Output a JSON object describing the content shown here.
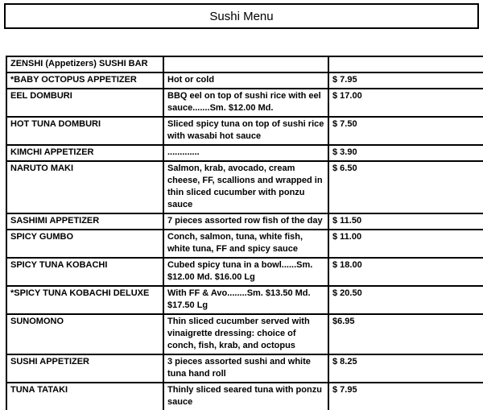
{
  "page": {
    "title": "Sushi Menu"
  },
  "colors": {
    "background": "#ffffff",
    "border": "#000000",
    "text": "#000000"
  },
  "menu": {
    "section_header": "ZENSHI (Appetizers) SUSHI BAR",
    "rows": [
      {
        "name": "*BABY OCTOPUS APPETIZER",
        "description": "Hot or cold",
        "price": "$ 7.95"
      },
      {
        "name": "EEL DOMBURI",
        "description": "BBQ eel on top of sushi rice with eel sauce.......Sm. $12.00 Md.",
        "price": "$ 17.00"
      },
      {
        "name": "HOT TUNA DOMBURI",
        "description": "Sliced spicy tuna on top of sushi rice with wasabi hot sauce",
        "price": "$ 7.50"
      },
      {
        "name": "KIMCHI APPETIZER",
        "description": ".............",
        "price": "$ 3.90"
      },
      {
        "name": "NARUTO MAKI",
        "description": "Salmon, krab, avocado, cream cheese, FF, scallions and wrapped in thin sliced cucumber with ponzu sauce",
        "price": "$ 6.50"
      },
      {
        "name": "SASHIMI APPETIZER",
        "description": "7 pieces assorted row fish of the day",
        "price": "$ 11.50"
      },
      {
        "name": "SPICY GUMBO",
        "description": "Conch, salmon, tuna, white fish, white tuna, FF and spicy sauce",
        "price": "$ 11.00"
      },
      {
        "name": "SPICY TUNA KOBACHI",
        "description": "Cubed spicy tuna in a bowl......Sm. $12.00 Md. $16.00 Lg",
        "price": "$ 18.00"
      },
      {
        "name": "*SPICY TUNA KOBACHI DELUXE",
        "description": "With FF & Avo........Sm. $13.50 Md. $17.50 Lg",
        "price": "$ 20.50"
      },
      {
        "name": "SUNOMONO",
        "description": "Thin sliced cucumber served with vinaigrette dressing: choice of conch, fish, krab, and octopus",
        "price": "$6.95"
      },
      {
        "name": "SUSHI APPETIZER",
        "description": "3 pieces assorted sushi and white tuna hand roll",
        "price": "$ 8.25"
      },
      {
        "name": "TUNA TATAKI",
        "description": "Thinly sliced seared tuna with ponzu sauce",
        "price": "$ 7.95"
      }
    ]
  }
}
